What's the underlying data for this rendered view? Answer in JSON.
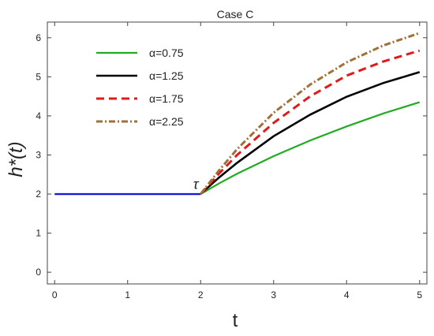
{
  "chart_data": {
    "type": "line",
    "title": "Case C",
    "xlabel": "t",
    "ylabel": "h*(t)",
    "xlim": [
      -0.1,
      5.1
    ],
    "ylim": [
      -0.3,
      6.4
    ],
    "xticks": [
      0,
      1,
      2,
      3,
      4,
      5
    ],
    "yticks": [
      0,
      1,
      2,
      3,
      4,
      5,
      6
    ],
    "grid": false,
    "legend_position": "top-left",
    "annotation": {
      "text": "τ",
      "x": 1.97,
      "y": 2.05
    },
    "baseline": {
      "color": "#1a1ad6",
      "x": [
        0,
        2
      ],
      "y": [
        2,
        2
      ]
    },
    "series": [
      {
        "name": "α=0.75",
        "color": "#22aa22",
        "dash": "solid",
        "x": [
          2.0,
          2.25,
          2.5,
          3.0,
          3.5,
          4.0,
          4.5,
          5.0
        ],
        "y": [
          2.0,
          2.27,
          2.52,
          2.97,
          3.37,
          3.73,
          4.06,
          4.35
        ]
      },
      {
        "name": "α=1.25",
        "color": "#000000",
        "dash": "solid",
        "x": [
          2.0,
          2.25,
          2.5,
          3.0,
          3.5,
          4.0,
          4.5,
          5.0
        ],
        "y": [
          2.0,
          2.42,
          2.8,
          3.48,
          4.03,
          4.49,
          4.84,
          5.12
        ]
      },
      {
        "name": "α=1.75",
        "color": "#e31a1a",
        "dash": "dashed",
        "x": [
          2.0,
          2.25,
          2.5,
          3.0,
          3.5,
          4.0,
          4.5,
          5.0
        ],
        "y": [
          2.0,
          2.52,
          3.0,
          3.82,
          4.5,
          5.03,
          5.39,
          5.67
        ]
      },
      {
        "name": "α=2.25",
        "color": "#a0703a",
        "dash": "dashdot",
        "x": [
          2.0,
          2.25,
          2.5,
          3.0,
          3.5,
          4.0,
          4.5,
          5.0
        ],
        "y": [
          2.0,
          2.6,
          3.15,
          4.08,
          4.8,
          5.37,
          5.8,
          6.12
        ]
      }
    ]
  }
}
